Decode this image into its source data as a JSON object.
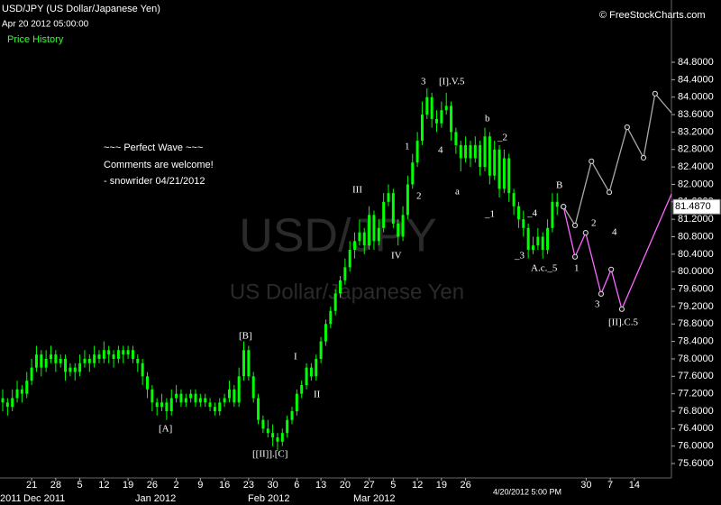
{
  "chart_data": {
    "type": "candlestick",
    "title": "USD/JPY (US Dollar/Japanese Yen)",
    "subtitle": "Apr 20 2012 05:00:00",
    "legend_label": "Price History",
    "credit": "© FreeStockCharts.com",
    "watermark": "USD/JPY",
    "watermark_sub": "US Dollar/Japanese Yen",
    "last_time_label": "4/20/2012 5:00 PM",
    "comments": [
      "~~~ Perfect Wave ~~~",
      "Comments are welcome!",
      "- snowrider  04/21/2012"
    ],
    "annotations": [
      "3",
      "[I].V.5",
      "b",
      "_2",
      "1",
      "4",
      "2",
      "a",
      "III",
      "_1",
      "_4",
      "B",
      "IV",
      "_3",
      "A.c._5",
      "1",
      "2",
      "3",
      "4",
      "[II].C.5",
      "[B]",
      "I",
      "II",
      "[A]",
      "[[II]].[C]"
    ],
    "x_labels": [
      "21",
      "28",
      "5",
      "12",
      "19",
      "26",
      "2",
      "9",
      "16",
      "23",
      "30",
      "6",
      "13",
      "20",
      "27",
      "5",
      "12",
      "19",
      "26",
      null,
      null,
      null,
      null,
      "30",
      "7",
      "14"
    ],
    "month_labels": [
      "2011",
      "Dec 2011",
      "Jan 2012",
      "Feb 2012",
      "Mar 2012"
    ],
    "color": "#00ff00",
    "candles": [
      [
        77.1,
        77.3,
        76.8,
        77.0
      ],
      [
        77.0,
        77.1,
        76.7,
        76.9
      ],
      [
        76.9,
        77.3,
        76.8,
        77.1
      ],
      [
        77.1,
        77.5,
        77.0,
        77.3
      ],
      [
        77.3,
        77.4,
        77.0,
        77.2
      ],
      [
        77.2,
        77.7,
        77.1,
        77.5
      ],
      [
        77.5,
        78.0,
        77.4,
        77.8
      ],
      [
        77.8,
        78.3,
        77.7,
        78.1
      ],
      [
        78.1,
        78.2,
        77.6,
        77.8
      ],
      [
        77.8,
        78.2,
        77.7,
        78.0
      ],
      [
        78.0,
        78.3,
        77.9,
        78.1
      ],
      [
        78.1,
        78.2,
        77.7,
        77.9
      ],
      [
        77.9,
        78.1,
        77.8,
        78.0
      ],
      [
        78.0,
        78.1,
        77.5,
        77.7
      ],
      [
        77.7,
        77.9,
        77.6,
        77.8
      ],
      [
        77.8,
        77.9,
        77.5,
        77.7
      ],
      [
        77.7,
        78.1,
        77.6,
        77.9
      ],
      [
        77.9,
        78.2,
        77.8,
        78.0
      ],
      [
        78.0,
        78.1,
        77.7,
        77.9
      ],
      [
        77.9,
        78.3,
        77.8,
        78.1
      ],
      [
        78.1,
        78.2,
        77.9,
        78.0
      ],
      [
        78.0,
        78.4,
        77.9,
        78.2
      ],
      [
        78.2,
        78.3,
        77.9,
        78.1
      ],
      [
        78.1,
        78.2,
        77.8,
        78.0
      ],
      [
        78.0,
        78.3,
        77.9,
        78.2
      ],
      [
        78.2,
        78.3,
        77.9,
        78.1
      ],
      [
        78.1,
        78.3,
        78.0,
        78.2
      ],
      [
        78.2,
        78.3,
        77.9,
        78.0
      ],
      [
        78.0,
        78.1,
        77.7,
        77.9
      ],
      [
        77.9,
        78.0,
        77.4,
        77.6
      ],
      [
        77.6,
        77.7,
        77.1,
        77.3
      ],
      [
        77.3,
        77.4,
        76.8,
        77.0
      ],
      [
        77.0,
        77.1,
        76.7,
        76.9
      ],
      [
        76.9,
        77.2,
        76.8,
        77.0
      ],
      [
        77.0,
        77.1,
        76.6,
        76.8
      ],
      [
        76.8,
        77.3,
        76.7,
        77.1
      ],
      [
        77.1,
        77.4,
        77.0,
        77.2
      ],
      [
        77.2,
        77.3,
        76.9,
        77.0
      ],
      [
        77.0,
        77.2,
        76.9,
        77.1
      ],
      [
        77.1,
        77.3,
        77.0,
        77.2
      ],
      [
        77.2,
        77.3,
        76.9,
        77.0
      ],
      [
        77.0,
        77.2,
        76.9,
        77.1
      ],
      [
        77.1,
        77.2,
        76.9,
        77.0
      ],
      [
        77.0,
        77.1,
        76.8,
        76.9
      ],
      [
        76.9,
        77.0,
        76.7,
        76.8
      ],
      [
        76.8,
        77.1,
        76.7,
        77.0
      ],
      [
        77.0,
        77.2,
        76.9,
        77.1
      ],
      [
        77.1,
        77.5,
        77.0,
        77.3
      ],
      [
        77.3,
        77.4,
        76.9,
        77.0
      ],
      [
        77.0,
        77.8,
        76.9,
        77.6
      ],
      [
        77.6,
        78.4,
        77.5,
        78.2
      ],
      [
        78.2,
        78.3,
        77.5,
        77.6
      ],
      [
        77.6,
        77.7,
        77.0,
        77.1
      ],
      [
        77.1,
        77.2,
        76.5,
        76.6
      ],
      [
        76.6,
        76.7,
        76.3,
        76.4
      ],
      [
        76.4,
        76.6,
        76.2,
        76.3
      ],
      [
        76.3,
        76.5,
        76.0,
        76.2
      ],
      [
        76.2,
        76.3,
        75.9,
        76.1
      ],
      [
        76.1,
        76.4,
        76.0,
        76.3
      ],
      [
        76.3,
        76.7,
        76.2,
        76.6
      ],
      [
        76.6,
        76.9,
        76.5,
        76.8
      ],
      [
        76.8,
        77.3,
        76.7,
        77.2
      ],
      [
        77.2,
        77.5,
        77.1,
        77.4
      ],
      [
        77.4,
        77.9,
        77.3,
        77.8
      ],
      [
        77.8,
        77.9,
        77.5,
        77.6
      ],
      [
        77.6,
        78.1,
        77.5,
        78.0
      ],
      [
        78.0,
        78.5,
        77.9,
        78.4
      ],
      [
        78.4,
        78.9,
        78.3,
        78.8
      ],
      [
        78.8,
        79.2,
        78.7,
        79.1
      ],
      [
        79.1,
        79.6,
        79.0,
        79.5
      ],
      [
        79.5,
        79.9,
        79.4,
        79.8
      ],
      [
        79.8,
        80.3,
        79.7,
        80.1
      ],
      [
        80.1,
        80.7,
        80.0,
        80.5
      ],
      [
        80.5,
        80.9,
        80.3,
        80.7
      ],
      [
        80.7,
        81.2,
        80.6,
        80.9
      ],
      [
        80.9,
        81.0,
        80.4,
        80.6
      ],
      [
        80.6,
        81.5,
        80.5,
        81.3
      ],
      [
        81.3,
        81.4,
        80.5,
        80.7
      ],
      [
        80.7,
        81.2,
        80.6,
        81.0
      ],
      [
        81.0,
        81.8,
        80.9,
        81.6
      ],
      [
        81.6,
        82.0,
        81.5,
        81.8
      ],
      [
        81.8,
        81.9,
        81.0,
        81.1
      ],
      [
        81.1,
        81.2,
        80.6,
        80.8
      ],
      [
        80.8,
        81.5,
        80.7,
        81.3
      ],
      [
        81.3,
        82.2,
        81.2,
        82.0
      ],
      [
        82.0,
        82.7,
        81.9,
        82.5
      ],
      [
        82.5,
        83.2,
        82.4,
        83.0
      ],
      [
        83.0,
        83.9,
        82.9,
        83.6
      ],
      [
        83.6,
        84.2,
        83.5,
        84.0
      ],
      [
        84.0,
        84.1,
        83.3,
        83.5
      ],
      [
        83.5,
        83.7,
        83.2,
        83.4
      ],
      [
        83.4,
        83.9,
        83.3,
        83.7
      ],
      [
        83.7,
        84.1,
        83.6,
        83.8
      ],
      [
        83.8,
        83.9,
        83.0,
        83.2
      ],
      [
        83.2,
        83.3,
        82.7,
        82.9
      ],
      [
        82.9,
        83.0,
        82.3,
        82.6
      ],
      [
        82.6,
        83.1,
        82.5,
        82.9
      ],
      [
        82.9,
        83.0,
        82.4,
        82.6
      ],
      [
        82.6,
        83.1,
        82.5,
        82.9
      ],
      [
        82.9,
        83.0,
        82.2,
        82.4
      ],
      [
        82.4,
        83.3,
        82.3,
        83.1
      ],
      [
        83.1,
        83.2,
        82.0,
        82.2
      ],
      [
        82.2,
        83.0,
        82.1,
        82.8
      ],
      [
        82.8,
        82.9,
        81.7,
        81.9
      ],
      [
        81.9,
        82.8,
        81.8,
        82.6
      ],
      [
        82.6,
        82.7,
        81.6,
        81.8
      ],
      [
        81.8,
        81.9,
        81.3,
        81.5
      ],
      [
        81.5,
        81.6,
        81.0,
        81.2
      ],
      [
        81.2,
        81.4,
        80.8,
        81.0
      ],
      [
        81.0,
        81.1,
        80.3,
        80.5
      ],
      [
        80.5,
        80.8,
        80.4,
        80.6
      ],
      [
        80.6,
        81.0,
        80.5,
        80.8
      ],
      [
        80.8,
        80.9,
        80.3,
        80.5
      ],
      [
        80.5,
        81.2,
        80.4,
        81.0
      ],
      [
        81.0,
        81.8,
        80.9,
        81.6
      ],
      [
        81.6,
        81.8,
        81.3,
        81.487
      ]
    ],
    "last_price_label": "81.4870",
    "projections": [
      {
        "color": "#aaaaaa",
        "x": [
          116.3,
          118.7,
          122.1,
          125.8,
          129.5,
          132.9,
          135.3,
          138.7
        ],
        "values": [
          81.49,
          81.06,
          82.53,
          81.82,
          83.31,
          82.61,
          84.08,
          83.64
        ]
      },
      {
        "color": "#ff66ff",
        "x": [
          116.3,
          118.7,
          120.9,
          124.1,
          126.2,
          128.4,
          138.7
        ],
        "values": [
          81.49,
          80.34,
          80.89,
          79.49,
          80.05,
          79.14,
          81.78
        ]
      }
    ],
    "ylim": [
      75.27,
      85.09
    ],
    "yticks": [
      {
        "value": 75.6,
        "label": "75.6000"
      },
      {
        "value": 76.0,
        "label": "76.0000"
      },
      {
        "value": 76.4,
        "label": "76.4000"
      },
      {
        "value": 76.8,
        "label": "76.8000"
      },
      {
        "value": 77.2,
        "label": "77.2000"
      },
      {
        "value": 77.6,
        "label": "77.6000"
      },
      {
        "value": 78.0,
        "label": "78.0000"
      },
      {
        "value": 78.4,
        "label": "78.4000"
      },
      {
        "value": 78.8,
        "label": "78.8000"
      },
      {
        "value": 79.2,
        "label": "79.2000"
      },
      {
        "value": 79.6,
        "label": "79.6000"
      },
      {
        "value": 80.0,
        "label": "80.0000"
      },
      {
        "value": 80.4,
        "label": "80.4000"
      },
      {
        "value": 80.8,
        "label": "80.8000"
      },
      {
        "value": 81.2,
        "label": "81.2000"
      },
      {
        "value": 81.6,
        "label": "81.6000"
      },
      {
        "value": 82.0,
        "label": "82.0000"
      },
      {
        "value": 82.4,
        "label": "82.4000"
      },
      {
        "value": 82.8,
        "label": "82.8000"
      },
      {
        "value": 83.2,
        "label": "83.2000"
      },
      {
        "value": 83.6,
        "label": "83.6000"
      },
      {
        "value": 84.0,
        "label": "84.0000"
      },
      {
        "value": 84.4,
        "label": "84.4000"
      },
      {
        "value": 84.8,
        "label": "84.8000"
      }
    ]
  }
}
